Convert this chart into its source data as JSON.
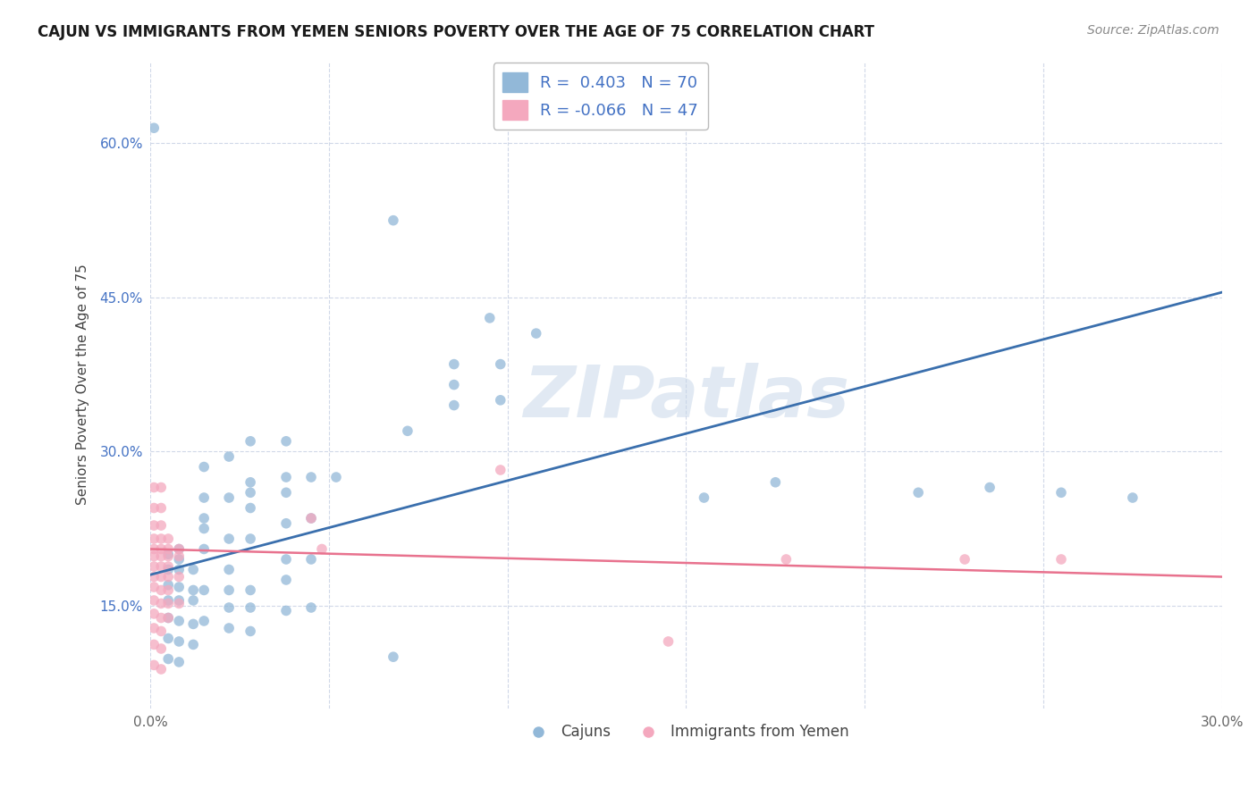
{
  "title": "CAJUN VS IMMIGRANTS FROM YEMEN SENIORS POVERTY OVER THE AGE OF 75 CORRELATION CHART",
  "source": "Source: ZipAtlas.com",
  "ylabel": "Seniors Poverty Over the Age of 75",
  "xlim": [
    0.0,
    0.3
  ],
  "ylim": [
    0.05,
    0.68
  ],
  "xticks": [
    0.0,
    0.05,
    0.1,
    0.15,
    0.2,
    0.25,
    0.3
  ],
  "xtick_labels": [
    "0.0%",
    "",
    "",
    "",
    "",
    "",
    "30.0%"
  ],
  "yticks": [
    0.15,
    0.3,
    0.45,
    0.6
  ],
  "ytick_labels": [
    "15.0%",
    "30.0%",
    "45.0%",
    "60.0%"
  ],
  "blue_color": "#92b8d8",
  "pink_color": "#f4a8be",
  "blue_line_color": "#3a6fad",
  "pink_line_color": "#e8728e",
  "cajun_legend": "Cajuns",
  "yemen_legend": "Immigrants from Yemen",
  "watermark": "ZIPatlas",
  "watermark_color": "#c5d5e8",
  "background_color": "#ffffff",
  "grid_color": "#d0d8e8",
  "blue_trend_x": [
    0.0,
    0.3
  ],
  "blue_trend_y": [
    0.18,
    0.455
  ],
  "pink_trend_x": [
    0.0,
    0.3
  ],
  "pink_trend_y": [
    0.205,
    0.178
  ],
  "cajun_points": [
    [
      0.001,
      0.615
    ],
    [
      0.068,
      0.525
    ],
    [
      0.095,
      0.43
    ],
    [
      0.108,
      0.415
    ],
    [
      0.085,
      0.385
    ],
    [
      0.098,
      0.385
    ],
    [
      0.085,
      0.365
    ],
    [
      0.085,
      0.345
    ],
    [
      0.098,
      0.35
    ],
    [
      0.072,
      0.32
    ],
    [
      0.028,
      0.31
    ],
    [
      0.038,
      0.31
    ],
    [
      0.022,
      0.295
    ],
    [
      0.015,
      0.285
    ],
    [
      0.028,
      0.27
    ],
    [
      0.038,
      0.275
    ],
    [
      0.045,
      0.275
    ],
    [
      0.052,
      0.275
    ],
    [
      0.028,
      0.26
    ],
    [
      0.038,
      0.26
    ],
    [
      0.015,
      0.255
    ],
    [
      0.022,
      0.255
    ],
    [
      0.028,
      0.245
    ],
    [
      0.015,
      0.235
    ],
    [
      0.038,
      0.23
    ],
    [
      0.045,
      0.235
    ],
    [
      0.015,
      0.225
    ],
    [
      0.022,
      0.215
    ],
    [
      0.028,
      0.215
    ],
    [
      0.008,
      0.205
    ],
    [
      0.015,
      0.205
    ],
    [
      0.005,
      0.2
    ],
    [
      0.008,
      0.195
    ],
    [
      0.038,
      0.195
    ],
    [
      0.045,
      0.195
    ],
    [
      0.005,
      0.185
    ],
    [
      0.008,
      0.185
    ],
    [
      0.012,
      0.185
    ],
    [
      0.022,
      0.185
    ],
    [
      0.038,
      0.175
    ],
    [
      0.005,
      0.17
    ],
    [
      0.008,
      0.168
    ],
    [
      0.012,
      0.165
    ],
    [
      0.015,
      0.165
    ],
    [
      0.022,
      0.165
    ],
    [
      0.028,
      0.165
    ],
    [
      0.005,
      0.155
    ],
    [
      0.008,
      0.155
    ],
    [
      0.012,
      0.155
    ],
    [
      0.022,
      0.148
    ],
    [
      0.028,
      0.148
    ],
    [
      0.038,
      0.145
    ],
    [
      0.045,
      0.148
    ],
    [
      0.005,
      0.138
    ],
    [
      0.008,
      0.135
    ],
    [
      0.012,
      0.132
    ],
    [
      0.015,
      0.135
    ],
    [
      0.022,
      0.128
    ],
    [
      0.028,
      0.125
    ],
    [
      0.005,
      0.118
    ],
    [
      0.008,
      0.115
    ],
    [
      0.012,
      0.112
    ],
    [
      0.005,
      0.098
    ],
    [
      0.008,
      0.095
    ],
    [
      0.068,
      0.1
    ],
    [
      0.155,
      0.255
    ],
    [
      0.175,
      0.27
    ],
    [
      0.215,
      0.26
    ],
    [
      0.235,
      0.265
    ],
    [
      0.255,
      0.26
    ],
    [
      0.275,
      0.255
    ]
  ],
  "yemen_points": [
    [
      0.001,
      0.265
    ],
    [
      0.003,
      0.265
    ],
    [
      0.001,
      0.245
    ],
    [
      0.003,
      0.245
    ],
    [
      0.001,
      0.228
    ],
    [
      0.003,
      0.228
    ],
    [
      0.001,
      0.215
    ],
    [
      0.003,
      0.215
    ],
    [
      0.005,
      0.215
    ],
    [
      0.001,
      0.205
    ],
    [
      0.003,
      0.205
    ],
    [
      0.005,
      0.205
    ],
    [
      0.008,
      0.205
    ],
    [
      0.001,
      0.198
    ],
    [
      0.003,
      0.198
    ],
    [
      0.005,
      0.198
    ],
    [
      0.008,
      0.198
    ],
    [
      0.001,
      0.188
    ],
    [
      0.003,
      0.188
    ],
    [
      0.005,
      0.188
    ],
    [
      0.001,
      0.178
    ],
    [
      0.003,
      0.178
    ],
    [
      0.005,
      0.178
    ],
    [
      0.008,
      0.178
    ],
    [
      0.001,
      0.168
    ],
    [
      0.003,
      0.165
    ],
    [
      0.005,
      0.165
    ],
    [
      0.001,
      0.155
    ],
    [
      0.003,
      0.152
    ],
    [
      0.005,
      0.152
    ],
    [
      0.008,
      0.152
    ],
    [
      0.001,
      0.142
    ],
    [
      0.003,
      0.138
    ],
    [
      0.005,
      0.138
    ],
    [
      0.001,
      0.128
    ],
    [
      0.003,
      0.125
    ],
    [
      0.001,
      0.112
    ],
    [
      0.003,
      0.108
    ],
    [
      0.001,
      0.092
    ],
    [
      0.003,
      0.088
    ],
    [
      0.045,
      0.235
    ],
    [
      0.048,
      0.205
    ],
    [
      0.098,
      0.282
    ],
    [
      0.145,
      0.115
    ],
    [
      0.178,
      0.195
    ],
    [
      0.228,
      0.195
    ],
    [
      0.255,
      0.195
    ]
  ]
}
